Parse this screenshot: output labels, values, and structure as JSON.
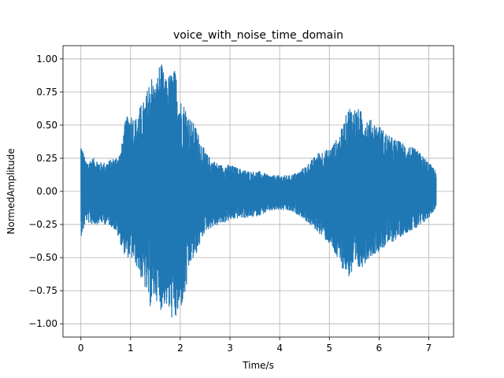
{
  "chart_data": {
    "type": "line",
    "title": "voice_with_noise_time_domain",
    "xlabel": "Time/s",
    "ylabel": "NormedAmplitude",
    "xlim": [
      -0.36,
      7.5
    ],
    "ylim": [
      -1.1,
      1.1
    ],
    "xticks": [
      0,
      1,
      2,
      3,
      4,
      5,
      6,
      7
    ],
    "xtick_labels": [
      "0",
      "1",
      "2",
      "3",
      "4",
      "5",
      "6",
      "7"
    ],
    "yticks": [
      -1.0,
      -0.75,
      -0.5,
      -0.25,
      0.0,
      0.25,
      0.5,
      0.75,
      1.0
    ],
    "ytick_labels": [
      "−1.00",
      "−0.75",
      "−0.50",
      "−0.25",
      "0.00",
      "0.25",
      "0.50",
      "0.75",
      "1.00"
    ],
    "grid": true,
    "color": "#1f77b4",
    "series": [
      {
        "name": "",
        "envelope": {
          "t": [
            0.0,
            0.05,
            0.1,
            0.2,
            0.3,
            0.4,
            0.5,
            0.6,
            0.7,
            0.8,
            0.9,
            1.0,
            1.1,
            1.2,
            1.3,
            1.4,
            1.5,
            1.6,
            1.7,
            1.8,
            1.9,
            2.0,
            2.1,
            2.2,
            2.3,
            2.4,
            2.5,
            2.6,
            2.8,
            3.0,
            3.2,
            3.4,
            3.6,
            3.8,
            4.0,
            4.2,
            4.4,
            4.6,
            4.8,
            5.0,
            5.2,
            5.4,
            5.6,
            5.8,
            6.0,
            6.2,
            6.4,
            6.6,
            6.8,
            7.0,
            7.15
          ],
          "upper": [
            0.38,
            0.3,
            0.22,
            0.25,
            0.25,
            0.22,
            0.22,
            0.24,
            0.26,
            0.3,
            0.55,
            0.6,
            0.55,
            0.65,
            0.7,
            0.9,
            0.8,
            1.0,
            0.85,
            0.9,
            0.92,
            0.7,
            0.65,
            0.55,
            0.5,
            0.4,
            0.3,
            0.25,
            0.2,
            0.2,
            0.17,
            0.15,
            0.15,
            0.12,
            0.12,
            0.12,
            0.15,
            0.22,
            0.3,
            0.32,
            0.42,
            0.65,
            0.62,
            0.55,
            0.5,
            0.42,
            0.38,
            0.35,
            0.3,
            0.22,
            0.15
          ],
          "lower": [
            -0.34,
            -0.3,
            -0.22,
            -0.25,
            -0.25,
            -0.24,
            -0.25,
            -0.26,
            -0.3,
            -0.4,
            -0.5,
            -0.5,
            -0.55,
            -0.65,
            -0.75,
            -0.88,
            -0.8,
            -0.9,
            -0.85,
            -0.95,
            -0.99,
            -0.9,
            -0.8,
            -0.55,
            -0.5,
            -0.4,
            -0.3,
            -0.28,
            -0.25,
            -0.22,
            -0.2,
            -0.2,
            -0.18,
            -0.15,
            -0.14,
            -0.15,
            -0.18,
            -0.25,
            -0.32,
            -0.4,
            -0.55,
            -0.65,
            -0.6,
            -0.5,
            -0.45,
            -0.4,
            -0.35,
            -0.3,
            -0.28,
            -0.2,
            -0.12
          ]
        }
      }
    ]
  }
}
